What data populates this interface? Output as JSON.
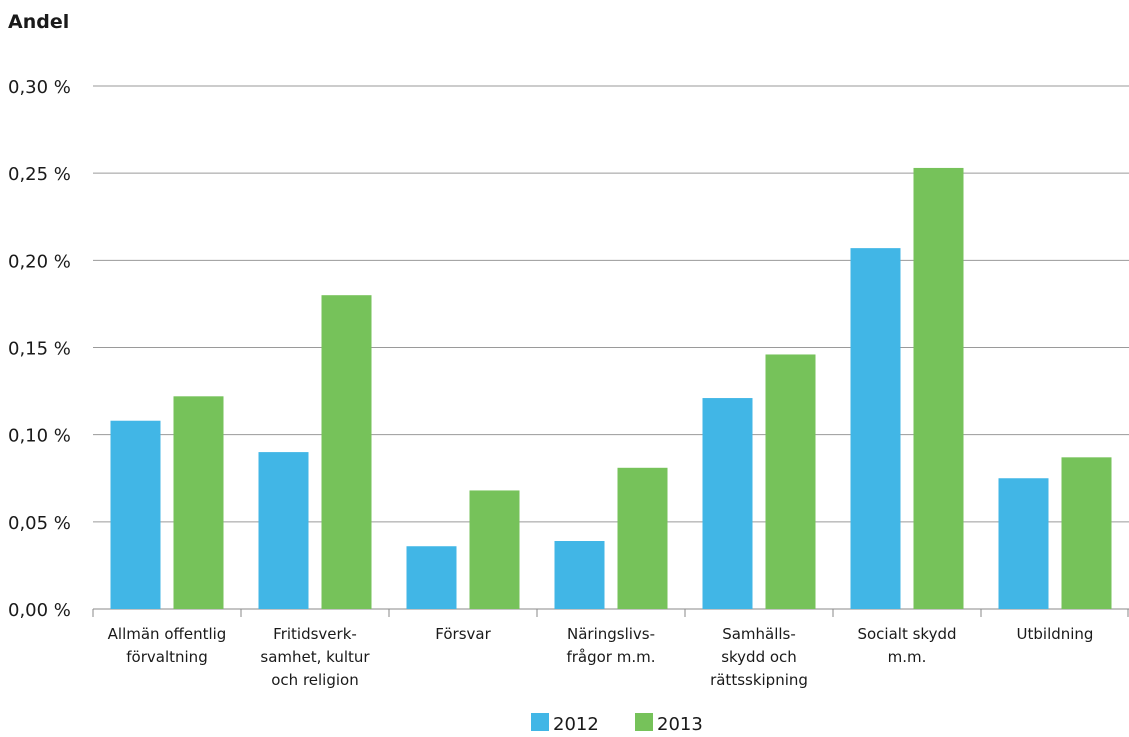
{
  "chart_data": {
    "type": "bar",
    "ylabel": "Andel",
    "ylim": [
      0,
      0.3
    ],
    "yticks": [
      {
        "value": 0.0,
        "label": "0,00 %"
      },
      {
        "value": 0.05,
        "label": "0,05 %"
      },
      {
        "value": 0.1,
        "label": "0,10 %"
      },
      {
        "value": 0.15,
        "label": "0,15 %"
      },
      {
        "value": 0.2,
        "label": "0,20 %"
      },
      {
        "value": 0.25,
        "label": "0,25 %"
      },
      {
        "value": 0.3,
        "label": "0,30 %"
      }
    ],
    "grid": true,
    "legend_position": "bottom",
    "categories": [
      [
        "Allmän offentlig",
        "förvaltning"
      ],
      [
        "Fritidsverk-",
        "samhet, kultur",
        "och religion"
      ],
      [
        "Försvar"
      ],
      [
        "Näringslivs-",
        "frågor m.m."
      ],
      [
        "Samhälls-",
        "skydd och",
        "rättsskipning"
      ],
      [
        "Socialt skydd",
        "m.m."
      ],
      [
        "Utbildning"
      ]
    ],
    "series": [
      {
        "name": "2012",
        "color": "#41b6e6",
        "values": [
          0.108,
          0.09,
          0.036,
          0.039,
          0.121,
          0.207,
          0.075
        ]
      },
      {
        "name": "2013",
        "color": "#76c25a",
        "values": [
          0.122,
          0.18,
          0.068,
          0.081,
          0.146,
          0.253,
          0.087
        ]
      }
    ]
  }
}
